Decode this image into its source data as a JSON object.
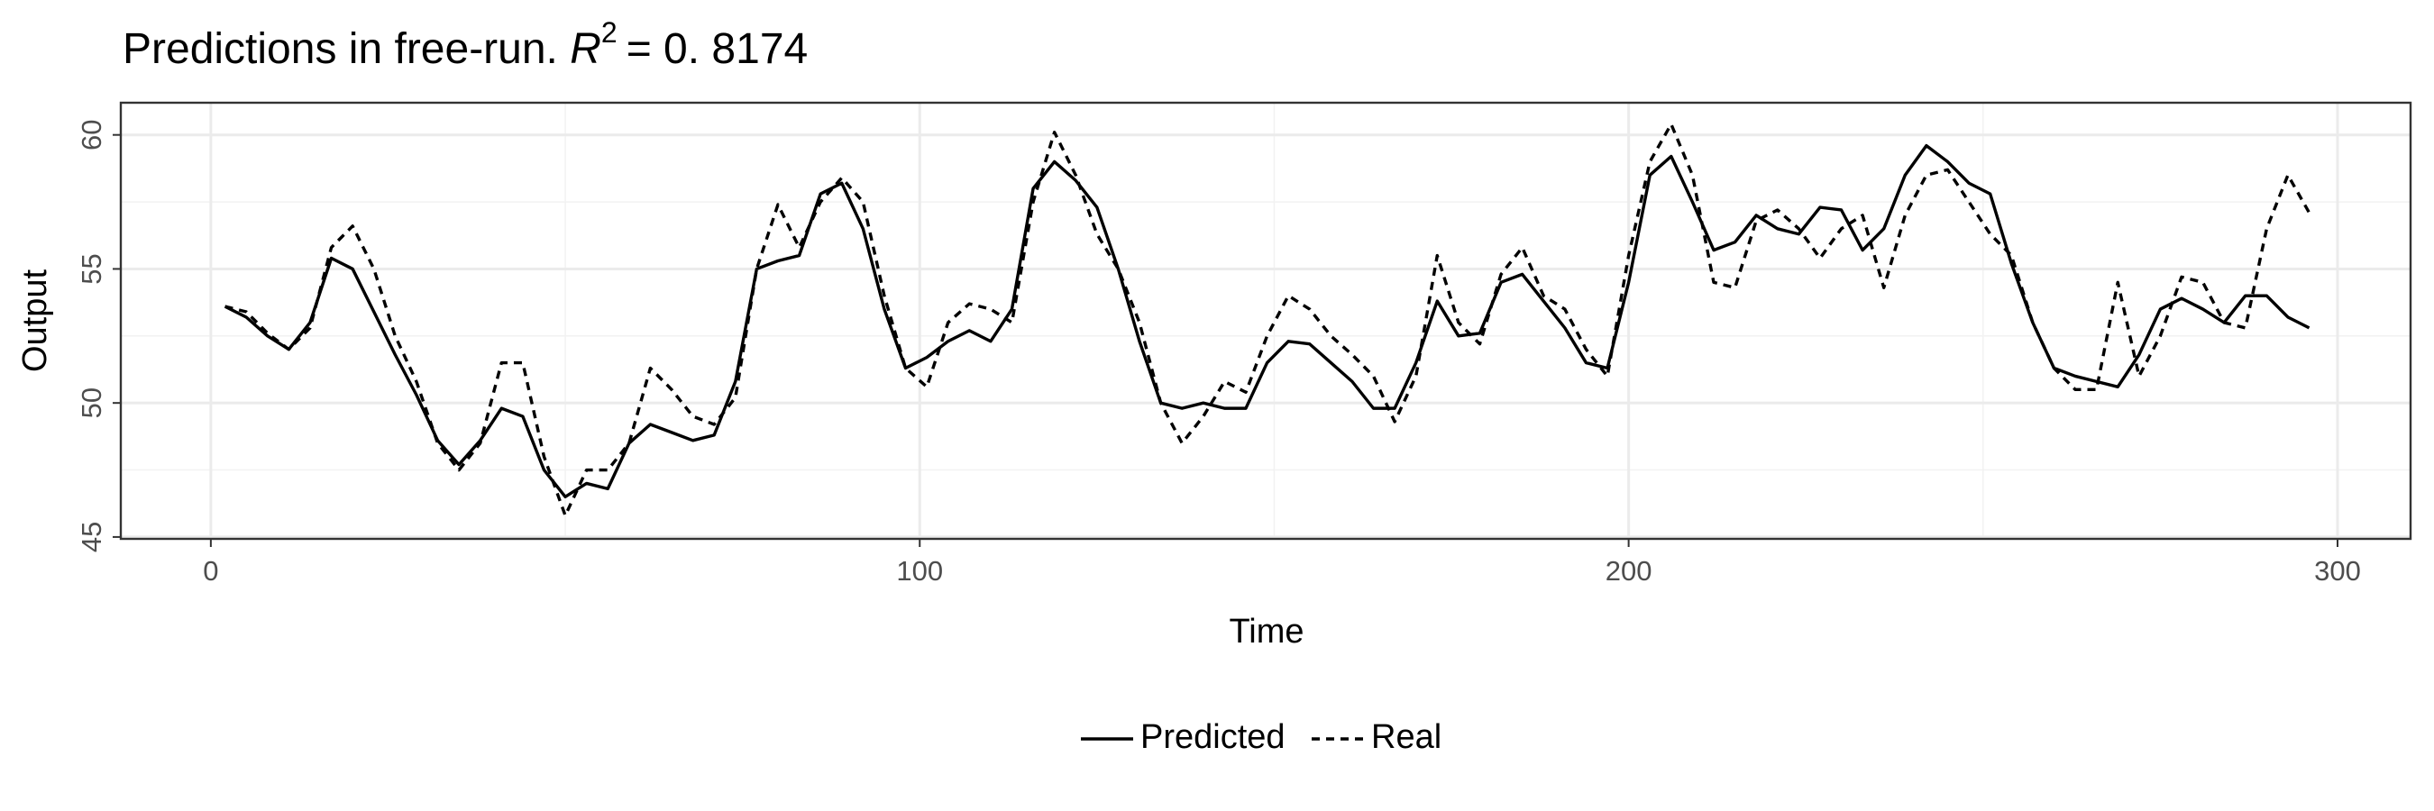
{
  "chart_data": {
    "type": "line",
    "title": "Predictions in free-run. ",
    "title_var": "R",
    "title_sup": "2",
    "title_rest": "= 0. 8174",
    "x_label": "Time",
    "y_label": "Output",
    "x": [
      2,
      5,
      8,
      11,
      14,
      17,
      20,
      23,
      26,
      29,
      32,
      35,
      38,
      41,
      44,
      47,
      50,
      53,
      56,
      59,
      62,
      65,
      68,
      71,
      74,
      77,
      80,
      83,
      86,
      89,
      92,
      95,
      98,
      101,
      104,
      107,
      110,
      113,
      116,
      119,
      122,
      125,
      128,
      131,
      134,
      137,
      140,
      143,
      146,
      149,
      152,
      155,
      158,
      161,
      164,
      167,
      170,
      173,
      176,
      179,
      182,
      185,
      188,
      191,
      194,
      197,
      200,
      203,
      206,
      209,
      212,
      215,
      218,
      221,
      224,
      227,
      230,
      233,
      236,
      239,
      242,
      245,
      248,
      251,
      254,
      257,
      260,
      263,
      266,
      269,
      272,
      275,
      278,
      281,
      284,
      287,
      290,
      293,
      296
    ],
    "series": [
      {
        "name": "Predicted",
        "color": "#000000",
        "linestyle": "solid",
        "values": [
          53.6,
          53.2,
          52.5,
          52.0,
          53.0,
          55.4,
          55.0,
          53.4,
          51.8,
          50.3,
          48.6,
          47.7,
          48.6,
          49.8,
          49.5,
          47.5,
          46.5,
          47.0,
          46.8,
          48.5,
          49.2,
          48.9,
          48.6,
          48.8,
          50.8,
          55.0,
          55.3,
          55.5,
          57.8,
          58.2,
          56.5,
          53.5,
          51.3,
          51.7,
          52.3,
          52.7,
          52.3,
          53.5,
          58.0,
          59.0,
          58.3,
          57.3,
          55.0,
          52.3,
          50.0,
          49.8,
          50.0,
          49.8,
          49.8,
          51.5,
          52.3,
          52.2,
          51.5,
          50.8,
          49.8,
          49.8,
          51.5,
          53.8,
          52.5,
          52.6,
          54.5,
          54.8,
          53.8,
          52.8,
          51.5,
          51.3,
          54.5,
          58.5,
          59.2,
          57.5,
          55.7,
          56.0,
          57.0,
          56.5,
          56.3,
          57.3,
          57.2,
          55.7,
          56.5,
          58.5,
          59.6,
          59.0,
          58.2,
          57.8,
          55.2,
          53.0,
          51.3,
          51.0,
          50.8,
          50.6,
          51.8,
          53.5,
          53.9,
          53.5,
          53.0,
          54.0,
          54.0,
          53.2,
          52.8
        ]
      },
      {
        "name": "Real",
        "color": "#000000",
        "linestyle": "dashed",
        "values": [
          53.6,
          53.4,
          52.6,
          52.0,
          52.8,
          55.8,
          56.6,
          55.0,
          52.5,
          50.8,
          48.5,
          47.5,
          48.5,
          51.5,
          51.5,
          48.0,
          45.8,
          47.5,
          47.5,
          48.5,
          51.3,
          50.5,
          49.5,
          49.2,
          50.2,
          55.0,
          57.4,
          55.8,
          57.5,
          58.4,
          57.5,
          54.0,
          51.3,
          50.6,
          53.0,
          53.7,
          53.5,
          53.0,
          57.5,
          60.1,
          58.5,
          56.3,
          55.0,
          53.0,
          50.0,
          48.5,
          49.5,
          50.8,
          50.4,
          52.5,
          54.0,
          53.5,
          52.5,
          51.8,
          51.0,
          49.3,
          51.0,
          55.5,
          53.0,
          52.2,
          54.8,
          55.8,
          54.0,
          53.5,
          52.0,
          51.0,
          55.5,
          59.0,
          60.4,
          58.5,
          54.5,
          54.3,
          56.8,
          57.2,
          56.5,
          55.4,
          56.5,
          57.0,
          54.3,
          57.0,
          58.5,
          58.7,
          57.5,
          56.3,
          55.5,
          53.0,
          51.3,
          50.5,
          50.5,
          54.5,
          51.0,
          52.5,
          54.7,
          54.5,
          53.0,
          52.8,
          56.5,
          58.5,
          57.1
        ]
      }
    ],
    "xlim": [
      -12.7,
      310.3
    ],
    "xticks": [
      0,
      100,
      200,
      300
    ],
    "ylim": [
      44.93,
      61.2
    ],
    "yticks": [
      45,
      50,
      55,
      60
    ],
    "grid": true,
    "legend": "bottom"
  }
}
